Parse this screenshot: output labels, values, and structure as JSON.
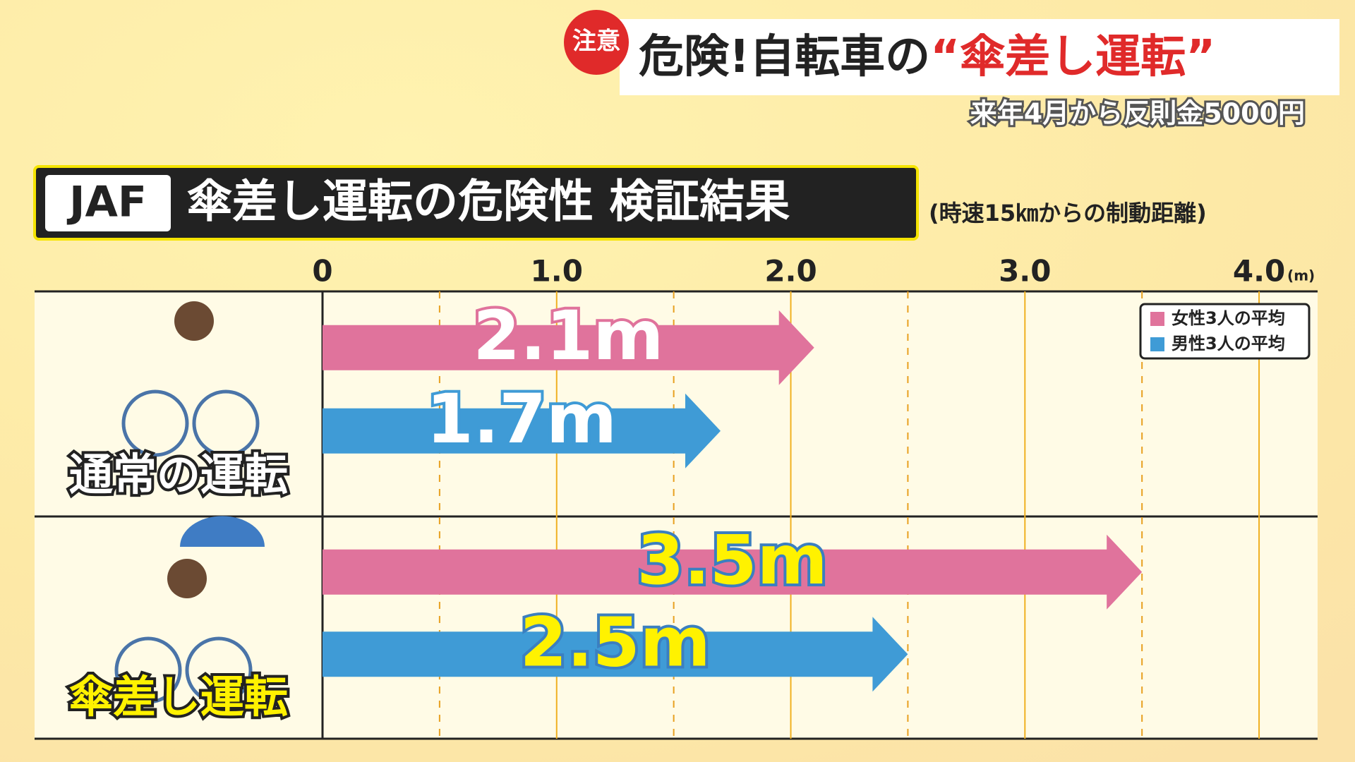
{
  "header": {
    "badge": "注意",
    "headline": "危険!自転車の",
    "headline_highlight": "“傘差し運転”",
    "subheadline": "来年4月から反則金5000円"
  },
  "chart_data": {
    "type": "bar",
    "orientation": "horizontal",
    "source_label": "JAF",
    "title": "傘差し運転の危険性 検証結果",
    "subtitle": "(時速15㎞からの制動距離)",
    "x_unit": "(m)",
    "categories": [
      "通常の運転",
      "傘差し運転"
    ],
    "series": [
      {
        "name": "女性3人の平均",
        "color": "#e0739c",
        "values": [
          2.1,
          3.5
        ],
        "value_labels": [
          "2.1m",
          "3.5m"
        ]
      },
      {
        "name": "男性3人の平均",
        "color": "#3f9bd6",
        "values": [
          1.7,
          2.5
        ],
        "value_labels": [
          "1.7m",
          "2.5m"
        ]
      }
    ],
    "xlim": [
      0,
      4.25
    ],
    "xticks": [
      0,
      {
        "value": 1,
        "label": "1.0"
      },
      {
        "value": 2,
        "label": "2.0"
      },
      {
        "value": 3,
        "label": "3.0"
      },
      {
        "value": 4,
        "label": "4.0"
      }
    ],
    "minor_xticks": [
      0.5,
      1.5,
      2.5,
      3.5
    ],
    "grid": true,
    "legend": "upper right"
  }
}
